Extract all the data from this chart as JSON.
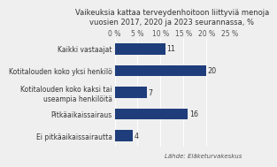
{
  "title": "Vaikeuksia kattaa terveydenhoitoon liittyviä menoja\nvuosien 2017, 2020 ja 2023 seurannassa, %",
  "categories": [
    "Ei pitkäaikaissairautta",
    "Pitkäaikaissairaus",
    "Kotitalouden koko kaksi tai\nuseampia henkilöitä",
    "Kotitalouden koko yksi henkilö",
    "Kaikki vastaajat"
  ],
  "values": [
    4,
    16,
    7,
    20,
    11
  ],
  "bar_color": "#1F3D7A",
  "xlim": [
    0,
    25
  ],
  "xticks": [
    0,
    5,
    10,
    15,
    20,
    25
  ],
  "xticklabels": [
    "0 %",
    "5 %",
    "10 %",
    "15 %",
    "20 %",
    "25 %"
  ],
  "source": "Lähde: Eläketurvakeskus",
  "title_fontsize": 6.0,
  "label_fontsize": 5.5,
  "value_fontsize": 5.8,
  "source_fontsize": 5.0,
  "background_color": "#EFEFEF"
}
